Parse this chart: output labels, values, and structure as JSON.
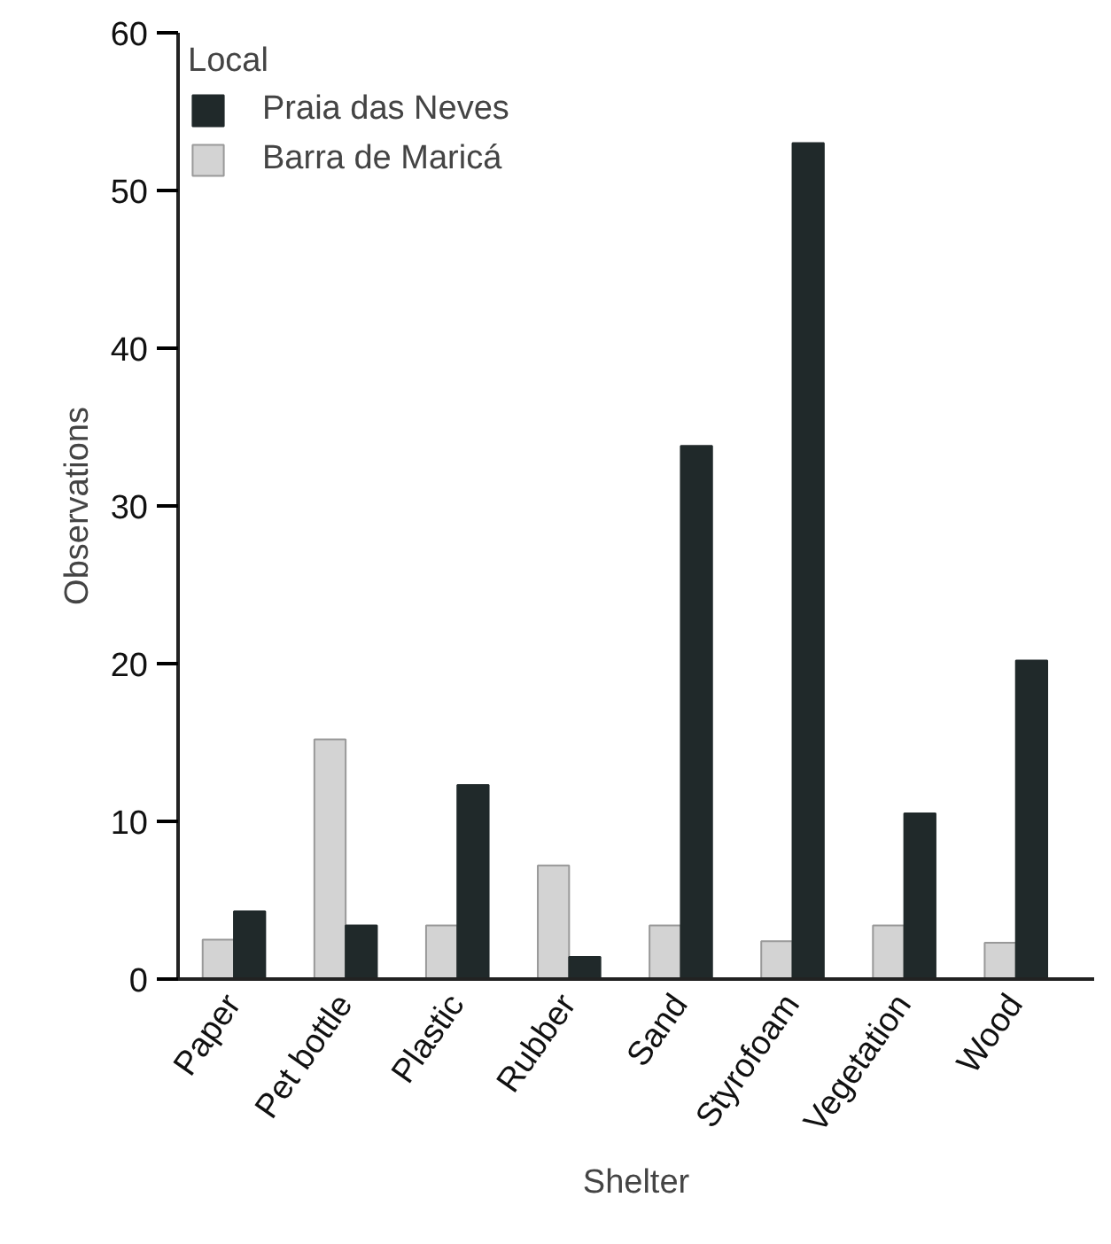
{
  "chart_data": {
    "type": "bar",
    "xlabel": "Shelter",
    "ylabel": "Observations",
    "legend_title": "Local",
    "categories": [
      "Paper",
      "Pet bottle",
      "Plastic",
      "Rubber",
      "Sand",
      "Styrofoam",
      "Vegetation",
      "Wood"
    ],
    "series": [
      {
        "name": "Barra de Maricá",
        "color": "#d3d3d3",
        "values": [
          2.5,
          15.2,
          3.4,
          7.2,
          3.4,
          2.4,
          3.4,
          2.3
        ]
      },
      {
        "name": "Praia das Neves",
        "color": "#20292a",
        "values": [
          4.3,
          3.4,
          12.3,
          1.4,
          33.8,
          53,
          10.5,
          20.2
        ]
      }
    ],
    "ylim": [
      0,
      60
    ],
    "yticks": [
      0,
      10,
      20,
      30,
      40,
      50,
      60
    ],
    "grid": false,
    "legend": "top left"
  }
}
